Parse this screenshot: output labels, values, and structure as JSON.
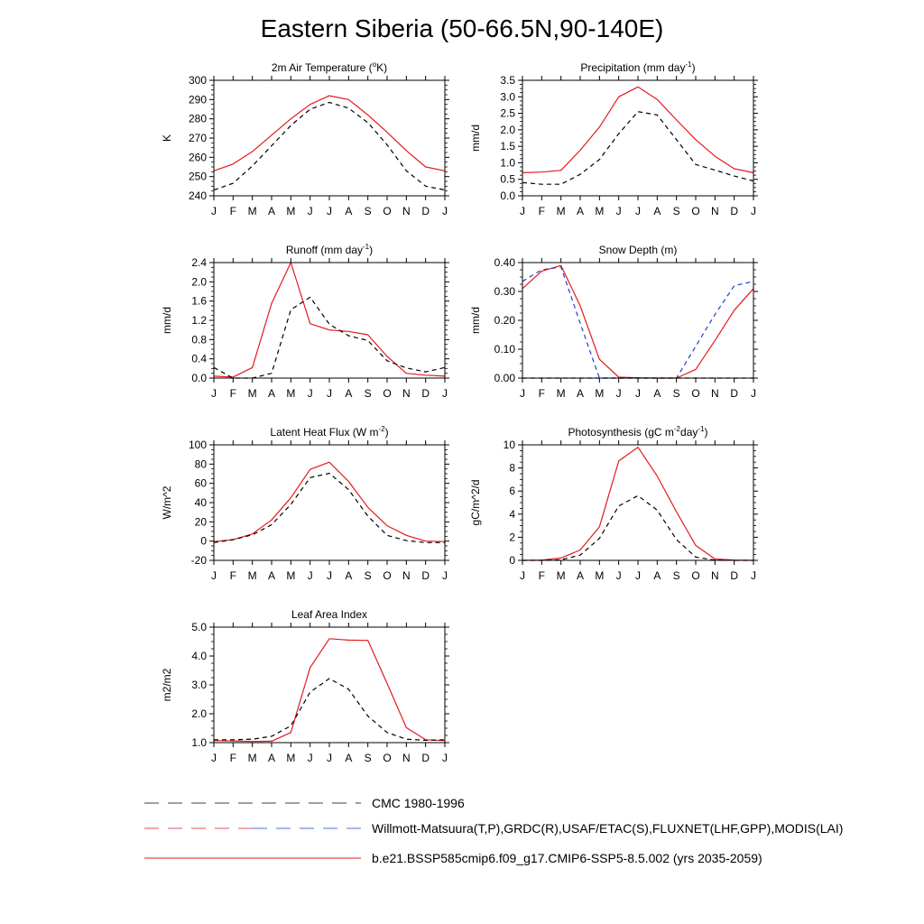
{
  "title": "Eastern Siberia (50-66.5N,90-140E)",
  "colors": {
    "model": "#e41a1c",
    "obs_black": "#000000",
    "obs_blue": "#1f3fd0"
  },
  "legend": [
    {
      "text": "CMC 1980-1996",
      "style": "dashed-black"
    },
    {
      "text": "Willmott-Matsuura(T,P),GRDC(R),USAF/ETAC(S),FLUXNET(LHF,GPP),MODIS(LAI)",
      "style": "dashed-mixed"
    },
    {
      "text": "b.e21.BSSP585cmip6.f09_g17.CMIP6-SSP5-8.5.002 (yrs 2035-2059)",
      "style": "solid-red"
    }
  ],
  "chart_data": [
    {
      "type": "line",
      "title": "2m Air Temperature (°K)",
      "title_parts": [
        [
          "2m Air Temperature (",
          ""
        ],
        [
          "o",
          "sup"
        ],
        [
          "K)",
          ""
        ]
      ],
      "ylabel": "K",
      "categories": [
        "J",
        "F",
        "M",
        "A",
        "M",
        "J",
        "J",
        "A",
        "S",
        "O",
        "N",
        "D",
        "J"
      ],
      "ylim": [
        240,
        300
      ],
      "yticks": [
        240,
        250,
        260,
        270,
        280,
        290,
        300
      ],
      "ytick_labels": [
        "240",
        "250",
        "260",
        "270",
        "280",
        "290",
        "300"
      ],
      "series": [
        {
          "style": "solid",
          "color": "#e41a1c",
          "values": [
            253,
            256.5,
            263,
            271.5,
            280,
            287.5,
            292,
            290,
            282,
            273,
            263.5,
            255,
            253
          ]
        },
        {
          "style": "dashed",
          "color": "#000000",
          "values": [
            243,
            246.5,
            255.5,
            266,
            276.5,
            285,
            288.5,
            285.5,
            278,
            266.5,
            253,
            245,
            243
          ]
        }
      ]
    },
    {
      "type": "line",
      "title": "Precipitation (mm day-1)",
      "title_parts": [
        [
          "Precipitation (mm day",
          ""
        ],
        [
          "-1",
          "sup"
        ],
        [
          ")",
          ""
        ]
      ],
      "ylabel": "mm/d",
      "categories": [
        "J",
        "F",
        "M",
        "A",
        "M",
        "J",
        "J",
        "A",
        "S",
        "O",
        "N",
        "D",
        "J"
      ],
      "ylim": [
        0,
        3.5
      ],
      "yticks": [
        0,
        0.5,
        1.0,
        1.5,
        2.0,
        2.5,
        3.0,
        3.5
      ],
      "ytick_labels": [
        "0.0",
        "0.5",
        "1.0",
        "1.5",
        "2.0",
        "2.5",
        "3.0",
        "3.5"
      ],
      "series": [
        {
          "style": "solid",
          "color": "#e41a1c",
          "values": [
            0.7,
            0.72,
            0.77,
            1.38,
            2.08,
            3.0,
            3.3,
            2.92,
            2.3,
            1.7,
            1.2,
            0.82,
            0.7
          ]
        },
        {
          "style": "dashed",
          "color": "#000000",
          "values": [
            0.4,
            0.35,
            0.35,
            0.65,
            1.1,
            1.88,
            2.55,
            2.45,
            1.7,
            0.95,
            0.78,
            0.6,
            0.45
          ]
        }
      ]
    },
    {
      "type": "line",
      "title": "Runoff (mm day-1)",
      "title_parts": [
        [
          "Runoff (mm day",
          ""
        ],
        [
          "-1",
          "sup"
        ],
        [
          ")",
          ""
        ]
      ],
      "ylabel": "mm/d",
      "categories": [
        "J",
        "F",
        "M",
        "A",
        "M",
        "J",
        "J",
        "A",
        "S",
        "O",
        "N",
        "D",
        "J"
      ],
      "ylim": [
        0,
        2.4
      ],
      "yticks": [
        0,
        0.4,
        0.8,
        1.2,
        1.6,
        2.0,
        2.4
      ],
      "ytick_labels": [
        "0.0",
        "0.4",
        "0.8",
        "1.2",
        "1.6",
        "2.0",
        "2.4"
      ],
      "series": [
        {
          "style": "solid",
          "color": "#e41a1c",
          "values": [
            0.04,
            0.02,
            0.22,
            1.55,
            2.4,
            1.13,
            1.0,
            0.97,
            0.9,
            0.45,
            0.1,
            0.06,
            0.04
          ]
        },
        {
          "style": "dashed",
          "color": "#000000",
          "values": [
            0.22,
            0.0,
            0.0,
            0.1,
            1.42,
            1.68,
            1.12,
            0.88,
            0.78,
            0.36,
            0.21,
            0.13,
            0.22
          ]
        }
      ]
    },
    {
      "type": "line",
      "title": "Snow Depth (m)",
      "title_parts": [
        [
          "Snow Depth (m)",
          ""
        ]
      ],
      "ylabel": "mm/d",
      "categories": [
        "J",
        "F",
        "M",
        "A",
        "M",
        "J",
        "J",
        "A",
        "S",
        "O",
        "N",
        "D",
        "J"
      ],
      "ylim": [
        0,
        0.4
      ],
      "yticks": [
        0,
        0.1,
        0.2,
        0.3,
        0.4
      ],
      "ytick_labels": [
        "0.00",
        "0.10",
        "0.20",
        "0.30",
        "0.40"
      ],
      "series": [
        {
          "style": "solid",
          "color": "#e41a1c",
          "values": [
            0.31,
            0.37,
            0.39,
            0.25,
            0.065,
            0.003,
            0.001,
            0.0,
            0.0,
            0.03,
            0.13,
            0.235,
            0.31
          ]
        },
        {
          "style": "dashed",
          "color": "#1f3fd0",
          "values": [
            0.335,
            0.375,
            0.385,
            0.19,
            0.0,
            0.0,
            0.0,
            0.0,
            0.0,
            0.11,
            0.22,
            0.32,
            0.335
          ]
        },
        {
          "style": "dashed",
          "color": "#000000",
          "values": [
            0,
            0,
            0,
            0,
            0,
            0,
            0,
            0,
            0,
            0,
            0,
            0,
            0
          ]
        }
      ]
    },
    {
      "type": "line",
      "title": "Latent Heat Flux (W m-2)",
      "title_parts": [
        [
          "Latent Heat Flux (W m",
          ""
        ],
        [
          "-2",
          "sup"
        ],
        [
          ")",
          ""
        ]
      ],
      "ylabel": "W/m^2",
      "categories": [
        "J",
        "F",
        "M",
        "A",
        "M",
        "J",
        "J",
        "A",
        "S",
        "O",
        "N",
        "D",
        "J"
      ],
      "ylim": [
        -20,
        100
      ],
      "yticks": [
        -20,
        0,
        20,
        40,
        60,
        80,
        100
      ],
      "ytick_labels": [
        "-20",
        "0",
        "20",
        "40",
        "60",
        "80",
        "100"
      ],
      "series": [
        {
          "style": "solid",
          "color": "#e41a1c",
          "values": [
            -0.5,
            1.5,
            7.5,
            22,
            45,
            74.5,
            82,
            62,
            35,
            16,
            6,
            0,
            -0.5
          ]
        },
        {
          "style": "dashed",
          "color": "#000000",
          "values": [
            -1.5,
            1.5,
            6.5,
            17,
            38,
            66,
            70.5,
            53.5,
            26,
            6,
            0.5,
            -1.5,
            -1.5
          ]
        }
      ]
    },
    {
      "type": "line",
      "title": "Photosynthesis (gC m-2day-1)",
      "title_parts": [
        [
          "Photosynthesis (gC m",
          ""
        ],
        [
          "-2",
          "sup"
        ],
        [
          "day",
          ""
        ],
        [
          "-1",
          "sup"
        ],
        [
          ")",
          ""
        ]
      ],
      "ylabel": "gC/m^2/d",
      "categories": [
        "J",
        "F",
        "M",
        "A",
        "M",
        "J",
        "J",
        "A",
        "S",
        "O",
        "N",
        "D",
        "J"
      ],
      "ylim": [
        0,
        10
      ],
      "yticks": [
        0,
        2,
        4,
        6,
        8,
        10
      ],
      "ytick_labels": [
        "0",
        "2",
        "4",
        "6",
        "8",
        "10"
      ],
      "series": [
        {
          "style": "solid",
          "color": "#e41a1c",
          "values": [
            0.0,
            0.02,
            0.2,
            0.9,
            2.9,
            8.6,
            9.8,
            7.3,
            4.2,
            1.3,
            0.12,
            0.02,
            0.0
          ]
        },
        {
          "style": "dashed",
          "color": "#000000",
          "values": [
            0.0,
            0.0,
            0.05,
            0.45,
            1.9,
            4.7,
            5.6,
            4.35,
            1.8,
            0.28,
            0.02,
            0.0,
            0.0
          ]
        }
      ]
    },
    {
      "type": "line",
      "title": "Leaf Area Index",
      "title_parts": [
        [
          "Leaf Area Index",
          ""
        ]
      ],
      "ylabel": "m2/m2",
      "categories": [
        "J",
        "F",
        "M",
        "A",
        "M",
        "J",
        "J",
        "A",
        "S",
        "O",
        "N",
        "D",
        "J"
      ],
      "ylim": [
        1.0,
        5.0
      ],
      "yticks": [
        1.0,
        2.0,
        3.0,
        4.0,
        5.0
      ],
      "ytick_labels": [
        "1.0",
        "2.0",
        "3.0",
        "4.0",
        "5.0"
      ],
      "series": [
        {
          "style": "solid",
          "color": "#e41a1c",
          "values": [
            1.07,
            1.06,
            1.04,
            1.05,
            1.35,
            3.6,
            4.6,
            4.55,
            4.54,
            3.05,
            1.52,
            1.1,
            1.07
          ]
        },
        {
          "style": "dashed",
          "color": "#000000",
          "values": [
            1.1,
            1.1,
            1.12,
            1.22,
            1.58,
            2.75,
            3.22,
            2.85,
            1.92,
            1.35,
            1.12,
            1.08,
            1.1
          ]
        }
      ]
    }
  ]
}
